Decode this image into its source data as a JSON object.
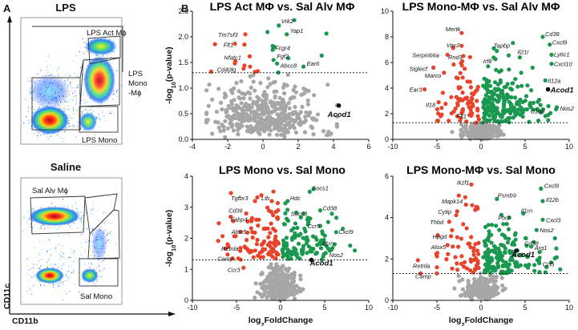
{
  "panel_labels": {
    "a": "A",
    "b": "B"
  },
  "flow": {
    "top": {
      "title": "LPS",
      "gates": {
        "act": "LPS Act Mϕ",
        "mono_line1": "LPS",
        "mono_line2": "Mono",
        "mono_line3": "-Mϕ",
        "mono_low": "LPS Mono"
      }
    },
    "bottom": {
      "title": "Saline",
      "gates": {
        "alv": "Sal Alv Mϕ",
        "mono": "Sal Mono"
      }
    },
    "y_axis_label": "CD11c",
    "x_axis_label": "CD11b"
  },
  "colors": {
    "up": "#1a9850",
    "down": "#e8432a",
    "ns": "#a6a6a6",
    "highlight": "#111111"
  },
  "chart_data": [
    {
      "id": "p1",
      "type": "scatter",
      "title": "LPS Act MΦ vs. Sal Alv MΦ",
      "xlabel": "",
      "ylabel": "-log10(p-value)",
      "xlim": [
        -4,
        6
      ],
      "ylim": [
        0,
        2.5
      ],
      "xticks": [
        "-4",
        "-2",
        "0",
        "2",
        "4",
        "6"
      ],
      "yticks": [
        "0.0",
        "0.5",
        "1.0",
        "1.5",
        "2.0",
        "2.5"
      ],
      "xtick_values": [
        -4,
        -2,
        0,
        2,
        4,
        6
      ],
      "ytick_values": [
        0,
        0.5,
        1,
        1.5,
        2,
        2.5
      ],
      "threshold": 1.3,
      "seed": 11,
      "ns_count": 420,
      "ns_spread": [
        1.5,
        0.45
      ],
      "ns_center": [
        0.2,
        0.3
      ],
      "up_count": 8,
      "down_count": 10,
      "labeled": [
        {
          "gene": "Vrk2",
          "x": 0.9,
          "y": 2.22,
          "dir": "up",
          "dx": 3,
          "dy": -3
        },
        {
          "gene": "Yap1",
          "x": 1.35,
          "y": 2.05,
          "dir": "up",
          "dx": 4,
          "dy": -2
        },
        {
          "gene": "Fcgr4",
          "x": 0.55,
          "y": 1.82,
          "dir": "up",
          "dx": 3,
          "dy": 5
        },
        {
          "gene": "Tm7sf3",
          "x": -1.0,
          "y": 2.05,
          "dir": "down",
          "dx": -34,
          "dy": 3
        },
        {
          "gene": "Flt1",
          "x": -1.05,
          "y": 1.85,
          "dir": "down",
          "dx": -26,
          "dy": 3
        },
        {
          "gene": "Nfatc1",
          "x": -0.75,
          "y": 1.62,
          "dir": "down",
          "dx": -32,
          "dy": 4
        },
        {
          "gene": "Fgf2",
          "x": 0.6,
          "y": 1.55,
          "dir": "up",
          "dx": 4,
          "dy": -2
        },
        {
          "gene": "Abcc8",
          "x": 0.8,
          "y": 1.48,
          "dir": "up",
          "dx": 4,
          "dy": 5
        },
        {
          "gene": "Cd40lg",
          "x": -1.1,
          "y": 1.38,
          "dir": "down",
          "dx": -33,
          "dy": 4
        },
        {
          "gene": "Ear6",
          "x": 2.3,
          "y": 1.42,
          "dir": "up",
          "dx": 4,
          "dy": -1
        },
        {
          "gene": "Acod1",
          "x": 4.3,
          "y": 0.66,
          "dir": "hl",
          "dx": -14,
          "dy": 14
        }
      ]
    },
    {
      "id": "p2",
      "type": "scatter",
      "title": "LPS Mono-MΦ vs. Sal Alv MΦ",
      "xlabel": "",
      "ylabel": "",
      "xlim": [
        -10,
        10
      ],
      "ylim": [
        0,
        10
      ],
      "xticks": [
        "-10",
        "-5",
        "0",
        "5",
        "10"
      ],
      "yticks": [
        "0",
        "2",
        "4",
        "6",
        "8",
        "10"
      ],
      "xtick_values": [
        -10,
        -5,
        0,
        5,
        10
      ],
      "ytick_values": [
        0,
        2,
        4,
        6,
        8,
        10
      ],
      "threshold": 1.3,
      "seed": 23,
      "ns_count": 260,
      "ns_spread": [
        0.9,
        0.6
      ],
      "ns_center": [
        0,
        0.4
      ],
      "up_count": 210,
      "down_count": 75,
      "labeled": [
        {
          "gene": "Mertk",
          "x": -2.2,
          "y": 8.3,
          "dir": "down",
          "dx": -20,
          "dy": -2
        },
        {
          "gene": "Cd38",
          "x": 7.0,
          "y": 8.0,
          "dir": "up",
          "dx": 3,
          "dy": -1
        },
        {
          "gene": "Cxcl9",
          "x": 7.8,
          "y": 7.4,
          "dir": "up",
          "dx": 3,
          "dy": 0
        },
        {
          "gene": "Vav2",
          "x": -2.2,
          "y": 7.3,
          "dir": "down",
          "dx": -19,
          "dy": 2
        },
        {
          "gene": "Tapbp",
          "x": 1.8,
          "y": 6.9,
          "dir": "up",
          "dx": -4,
          "dy": -4
        },
        {
          "gene": "Ly6c1",
          "x": 8.0,
          "y": 6.6,
          "dir": "up",
          "dx": 3,
          "dy": 2
        },
        {
          "gene": "Serpinb6a",
          "x": -3.8,
          "y": 6.6,
          "dir": "down",
          "dx": -44,
          "dy": 3
        },
        {
          "gene": "Rnd3",
          "x": -2.0,
          "y": 6.5,
          "dir": "down",
          "dx": -19,
          "dy": 4
        },
        {
          "gene": "Il21r",
          "x": 4.4,
          "y": 6.4,
          "dir": "up",
          "dx": -3,
          "dy": -4
        },
        {
          "gene": "Cxcl10",
          "x": 8.0,
          "y": 5.9,
          "dir": "up",
          "dx": 3,
          "dy": 3
        },
        {
          "gene": "Siglecf",
          "x": -5.4,
          "y": 5.6,
          "dir": "down",
          "dx": -30,
          "dy": 4
        },
        {
          "gene": "Irf8",
          "x": 0.8,
          "y": 5.7,
          "dir": "up",
          "dx": -6,
          "dy": -4
        },
        {
          "gene": "Marco",
          "x": -4.2,
          "y": 5.2,
          "dir": "down",
          "dx": -24,
          "dy": 6
        },
        {
          "gene": "Il12a",
          "x": 7.3,
          "y": 4.6,
          "dir": "up",
          "dx": 3,
          "dy": 3
        },
        {
          "gene": "Acod1",
          "x": 7.6,
          "y": 3.9,
          "dir": "hl",
          "dx": 3,
          "dy": 4
        },
        {
          "gene": "Ear3",
          "x": -6.4,
          "y": 3.9,
          "dir": "down",
          "dx": -19,
          "dy": 3
        },
        {
          "gene": "Il18",
          "x": -4.8,
          "y": 2.9,
          "dir": "down",
          "dx": -16,
          "dy": 6
        },
        {
          "gene": "C1qb",
          "x": 5.6,
          "y": 2.6,
          "dir": "up",
          "dx": 0,
          "dy": 9
        },
        {
          "gene": "Nos2",
          "x": 8.6,
          "y": 2.5,
          "dir": "up",
          "dx": 4,
          "dy": 4
        },
        {
          "gene": "Flt1",
          "x": -1.3,
          "y": 1.9,
          "dir": "down",
          "dx": -16,
          "dy": 4
        }
      ]
    },
    {
      "id": "p3",
      "type": "scatter",
      "title": "LPS Mono vs. Sal Mono",
      "xlabel": "log2FoldChange",
      "ylabel": "-log10(p-value)",
      "xlim": [
        -10,
        10
      ],
      "ylim": [
        0,
        4
      ],
      "xticks": [
        "-10",
        "-5",
        "0",
        "5",
        "10"
      ],
      "yticks": [
        "0",
        "1",
        "2",
        "3",
        "4"
      ],
      "xtick_values": [
        -10,
        -5,
        0,
        5,
        10
      ],
      "ytick_values": [
        0,
        1,
        2,
        3,
        4
      ],
      "threshold": 1.3,
      "seed": 37,
      "ns_count": 320,
      "ns_spread": [
        1.0,
        0.45
      ],
      "ns_center": [
        0,
        0.3
      ],
      "up_count": 120,
      "down_count": 95,
      "labeled": [
        {
          "gene": "Socs1",
          "x": 3.3,
          "y": 3.5,
          "dir": "up",
          "dx": 3,
          "dy": -2
        },
        {
          "gene": "Tgfbr3",
          "x": -2.9,
          "y": 3.2,
          "dir": "down",
          "dx": -30,
          "dy": -1
        },
        {
          "gene": "Ltb",
          "x": -1.0,
          "y": 3.2,
          "dir": "down",
          "dx": -13,
          "dy": -1
        },
        {
          "gene": "Hdc",
          "x": 0.8,
          "y": 3.2,
          "dir": "up",
          "dx": 3,
          "dy": -1
        },
        {
          "gene": "Socs3",
          "x": 2.6,
          "y": 2.8,
          "dir": "up",
          "dx": -16,
          "dy": 3
        },
        {
          "gene": "Cd38",
          "x": 4.5,
          "y": 2.9,
          "dir": "up",
          "dx": 3,
          "dy": 0
        },
        {
          "gene": "Cd36",
          "x": -3.9,
          "y": 2.8,
          "dir": "down",
          "dx": -22,
          "dy": -1
        },
        {
          "gene": "Fabp4",
          "x": -3.3,
          "y": 2.6,
          "dir": "down",
          "dx": -26,
          "dy": 2
        },
        {
          "gene": "Ccr5",
          "x": 4.5,
          "y": 2.4,
          "dir": "up",
          "dx": -16,
          "dy": 3
        },
        {
          "gene": "Cxcl9",
          "x": 6.3,
          "y": 2.2,
          "dir": "up",
          "dx": 3,
          "dy": 2
        },
        {
          "gene": "Alox5",
          "x": -3.2,
          "y": 2.2,
          "dir": "down",
          "dx": -26,
          "dy": 2
        },
        {
          "gene": "Il1rn",
          "x": 4.9,
          "y": 1.95,
          "dir": "up",
          "dx": -2,
          "dy": 7
        },
        {
          "gene": "Retnla",
          "x": -4.0,
          "y": 1.7,
          "dir": "down",
          "dx": -30,
          "dy": 4
        },
        {
          "gene": "Nos2",
          "x": 5.6,
          "y": 1.6,
          "dir": "up",
          "dx": -1,
          "dy": 8
        },
        {
          "gene": "Camp",
          "x": -4.8,
          "y": 1.35,
          "dir": "down",
          "dx": -26,
          "dy": 3
        },
        {
          "gene": "Acod1",
          "x": 3.5,
          "y": 1.3,
          "dir": "hl",
          "dx": -2,
          "dy": 7
        },
        {
          "gene": "Ccr3",
          "x": -4.2,
          "y": 1.05,
          "dir": "down",
          "dx": -20,
          "dy": 5
        }
      ]
    },
    {
      "id": "p4",
      "type": "scatter",
      "title": "LPS Mono-MΦ vs. Sal Mono",
      "xlabel": "log2FoldChange",
      "ylabel": "",
      "xlim": [
        -10,
        10
      ],
      "ylim": [
        0,
        6
      ],
      "xticks": [
        "-10",
        "-5",
        "0",
        "5",
        "10"
      ],
      "yticks": [
        "0",
        "2",
        "4",
        "6"
      ],
      "xtick_values": [
        -10,
        -5,
        0,
        5,
        10
      ],
      "ytick_values": [
        0,
        2,
        4,
        6
      ],
      "threshold": 1.3,
      "seed": 53,
      "ns_count": 260,
      "ns_spread": [
        1.0,
        0.45
      ],
      "ns_center": [
        0,
        0.35
      ],
      "up_count": 170,
      "down_count": 55,
      "labeled": [
        {
          "gene": "Ikzf1",
          "x": -1.1,
          "y": 5.6,
          "dir": "down",
          "dx": -18,
          "dy": 0
        },
        {
          "gene": "Cxcl9",
          "x": 6.8,
          "y": 5.4,
          "dir": "up",
          "dx": 4,
          "dy": -1
        },
        {
          "gene": "Il12b",
          "x": 7.0,
          "y": 4.8,
          "dir": "up",
          "dx": 4,
          "dy": 1
        },
        {
          "gene": "Psmb9",
          "x": 1.8,
          "y": 4.9,
          "dir": "up",
          "dx": 1,
          "dy": -2
        },
        {
          "gene": "Mapk14",
          "x": -1.0,
          "y": 4.6,
          "dir": "down",
          "dx": -38,
          "dy": -2
        },
        {
          "gene": "Cytip",
          "x": -2.7,
          "y": 4.3,
          "dir": "down",
          "dx": -24,
          "dy": 3
        },
        {
          "gene": "Ptx3",
          "x": 3.2,
          "y": 4.0,
          "dir": "up",
          "dx": -14,
          "dy": 3
        },
        {
          "gene": "Il1rn",
          "x": 4.8,
          "y": 4.2,
          "dir": "up",
          "dx": -3,
          "dy": -1
        },
        {
          "gene": "Cxcl3",
          "x": 7.0,
          "y": 3.9,
          "dir": "up",
          "dx": 4,
          "dy": 3
        },
        {
          "gene": "Thbd",
          "x": -3.6,
          "y": 3.8,
          "dir": "down",
          "dx": -24,
          "dy": 3
        },
        {
          "gene": "Nos2",
          "x": 6.3,
          "y": 3.4,
          "dir": "up",
          "dx": 4,
          "dy": 3
        },
        {
          "gene": "Hpgd",
          "x": -3.4,
          "y": 3.1,
          "dir": "down",
          "dx": -23,
          "dy": 3
        },
        {
          "gene": "Cd38",
          "x": 5.1,
          "y": 3.0,
          "dir": "up",
          "dx": -2,
          "dy": 9
        },
        {
          "gene": "Alox5",
          "x": -3.2,
          "y": 2.6,
          "dir": "down",
          "dx": -27,
          "dy": 3
        },
        {
          "gene": "Arg1",
          "x": 5.7,
          "y": 2.6,
          "dir": "up",
          "dx": 4,
          "dy": 4
        },
        {
          "gene": "Acod1",
          "x": 4.0,
          "y": 2.4,
          "dir": "hl",
          "dx": -6,
          "dy": 8
        },
        {
          "gene": "Ccl5",
          "x": 6.6,
          "y": 1.8,
          "dir": "up",
          "dx": 4,
          "dy": 4
        },
        {
          "gene": "Retnla",
          "x": -5.0,
          "y": 1.6,
          "dir": "down",
          "dx": -30,
          "dy": 1
        },
        {
          "gene": "Camp",
          "x": -5.0,
          "y": 1.3,
          "dir": "down",
          "dx": -27,
          "dy": 6
        }
      ]
    }
  ]
}
